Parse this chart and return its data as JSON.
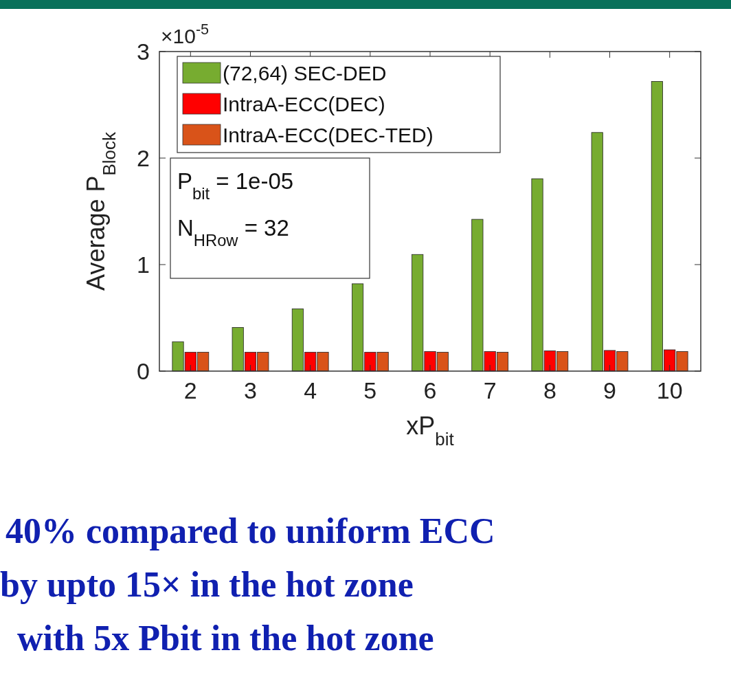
{
  "chart_data": {
    "type": "bar",
    "categories": [
      "2",
      "3",
      "4",
      "5",
      "6",
      "7",
      "8",
      "9",
      "10"
    ],
    "series": [
      {
        "name": "(72,64) SEC-DED",
        "color": "#77ac30",
        "values": [
          0.276,
          0.41,
          0.585,
          0.82,
          1.095,
          1.425,
          1.806,
          2.24,
          2.72
        ]
      },
      {
        "name": "IntraA-ECC(DEC)",
        "color": "#ff0000",
        "values": [
          0.177,
          0.177,
          0.177,
          0.177,
          0.184,
          0.184,
          0.19,
          0.194,
          0.2
        ]
      },
      {
        "name": "IntraA-ECC(DEC-TED)",
        "color": "#d95319",
        "values": [
          0.177,
          0.177,
          0.177,
          0.177,
          0.177,
          0.177,
          0.184,
          0.184,
          0.184
        ]
      }
    ],
    "ylim": [
      0,
      3
    ],
    "yticks": [
      0,
      1,
      2,
      3
    ],
    "xlabel": "xP$_{bit}$",
    "ylabel": "Average P$_{Block}$",
    "legend": "top left",
    "annotations": [
      "×10$^{-5}$",
      "P$_{bit}$ = 1e-05",
      "N$_{H}$$_{Row}$ = 32",
      "40% compared to uniform ECC",
      "by upto 15× in the hot zone",
      "with 5x Pbit in the hot zone"
    ]
  }
}
